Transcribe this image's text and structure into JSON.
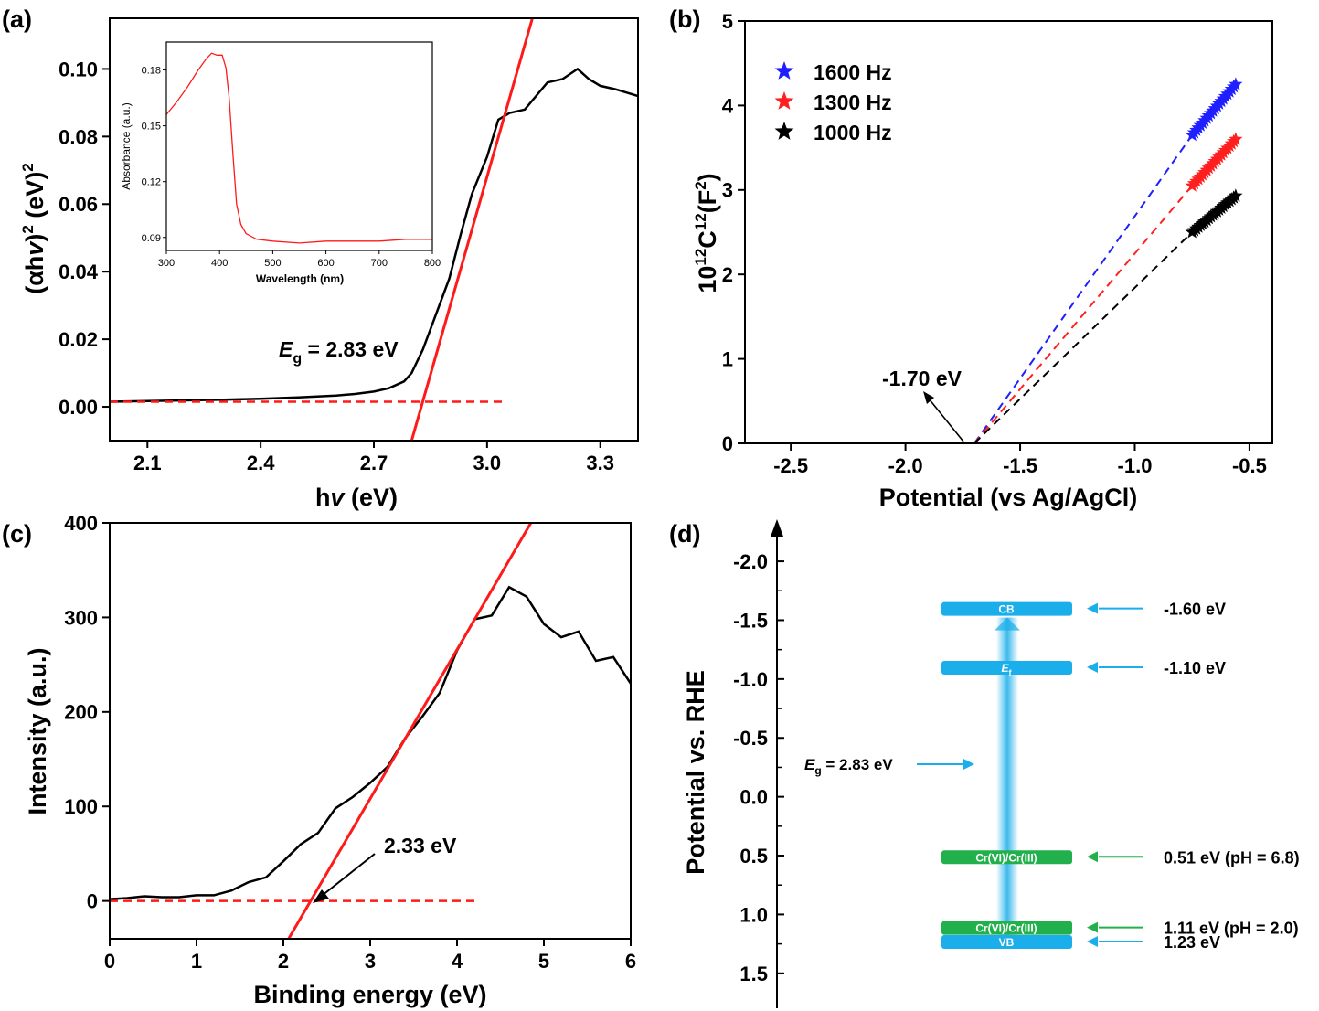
{
  "chart_data": [
    {
      "panel": "(a)",
      "type": "line",
      "xlabel_main": "h",
      "xlabel_italic": "v",
      "xlabel_tail": " (eV)",
      "ylabel_open": "(αh",
      "ylabel_italic": "v",
      "ylabel_close": ")",
      "ylabel_exp1": "2",
      "ylabel_unit": " (eV)",
      "ylabel_exp2": "2",
      "xlim": [
        2.0,
        3.4
      ],
      "ylim": [
        -0.01,
        0.115
      ],
      "xticks": [
        "2.1",
        "2.4",
        "2.7",
        "3.0",
        "3.3"
      ],
      "xtick_values": [
        2.1,
        2.4,
        2.7,
        3.0,
        3.3
      ],
      "yticks": [
        "0.00",
        "0.02",
        "0.04",
        "0.06",
        "0.08",
        "0.10"
      ],
      "ytick_values": [
        0,
        0.02,
        0.04,
        0.06,
        0.08,
        0.1
      ],
      "annotation_italic": "E",
      "annotation_sub": "g",
      "annotation_rest": " = 2.83 eV",
      "colors": {
        "data": "#000000",
        "fit": "#ff1a1a"
      },
      "series": [
        {
          "style": "solid-black",
          "x": [
            2.0,
            2.1,
            2.2,
            2.3,
            2.4,
            2.5,
            2.6,
            2.65,
            2.7,
            2.74,
            2.78,
            2.8,
            2.83,
            2.86,
            2.9,
            2.93,
            2.96,
            3.0,
            3.03,
            3.06,
            3.1,
            3.13,
            3.16,
            3.2,
            3.24,
            3.27,
            3.3,
            3.34,
            3.37,
            3.4
          ],
          "y": [
            0.0015,
            0.0017,
            0.0019,
            0.0021,
            0.0024,
            0.0028,
            0.0033,
            0.0038,
            0.0045,
            0.0055,
            0.0075,
            0.01,
            0.017,
            0.026,
            0.038,
            0.051,
            0.063,
            0.074,
            0.085,
            0.087,
            0.088,
            0.092,
            0.096,
            0.097,
            0.1,
            0.097,
            0.095,
            0.094,
            0.093,
            0.092
          ]
        },
        {
          "style": "solid-red",
          "x": [
            2.8,
            3.12
          ],
          "y": [
            -0.01,
            0.115
          ]
        },
        {
          "style": "dashed-red",
          "x": [
            2.0,
            3.04
          ],
          "y": [
            0.0015,
            0.0015
          ]
        }
      ],
      "inset": {
        "type": "line",
        "xlabel": "Wavelength (nm)",
        "ylabel": "Absorbance (a.u.)",
        "xlim": [
          300,
          800
        ],
        "ylim": [
          0.083,
          0.195
        ],
        "xticks": [
          "300",
          "400",
          "500",
          "600",
          "700",
          "800"
        ],
        "xtick_values": [
          300,
          400,
          500,
          600,
          700,
          800
        ],
        "yticks": [
          "0.09",
          "0.12",
          "0.15",
          "0.18"
        ],
        "ytick_values": [
          0.09,
          0.12,
          0.15,
          0.18
        ],
        "x": [
          300,
          320,
          340,
          360,
          375,
          385,
          395,
          405,
          412,
          418,
          425,
          432,
          440,
          450,
          470,
          500,
          550,
          600,
          650,
          700,
          750,
          800
        ],
        "y": [
          0.156,
          0.163,
          0.171,
          0.18,
          0.186,
          0.189,
          0.188,
          0.188,
          0.181,
          0.165,
          0.135,
          0.108,
          0.097,
          0.092,
          0.089,
          0.088,
          0.087,
          0.088,
          0.088,
          0.088,
          0.089,
          0.089
        ]
      }
    },
    {
      "panel": "(b)",
      "type": "scatter",
      "xlabel": "Potential (vs Ag/AgCl)",
      "ylabel_a": "10",
      "ylabel_sup1": "12",
      "ylabel_b": "C",
      "ylabel_sup2": "12",
      "ylabel_c": "(F",
      "ylabel_sup3": "2",
      "ylabel_d": ")",
      "xlim": [
        -2.7,
        -0.4
      ],
      "ylim": [
        0,
        5
      ],
      "xticks": [
        "-2.5",
        "-2.0",
        "-1.5",
        "-1.0",
        "-0.5"
      ],
      "xtick_values": [
        -2.5,
        -2.0,
        -1.5,
        -1.0,
        -0.5
      ],
      "yticks": [
        "0",
        "1",
        "2",
        "3",
        "4",
        "5"
      ],
      "ytick_values": [
        0,
        1,
        2,
        3,
        4,
        5
      ],
      "annotation": "-1.70 eV",
      "intercept": -1.7,
      "legend_position": "top-left",
      "series": [
        {
          "name": "1600 Hz",
          "color": "#1f1fff",
          "x_start": -0.75,
          "x_end": -0.56,
          "y_start": 3.65,
          "y_end": 4.25
        },
        {
          "name": "1300 Hz",
          "color": "#ff1f1f",
          "x_start": -0.75,
          "x_end": -0.56,
          "y_start": 3.05,
          "y_end": 3.6
        },
        {
          "name": "1000 Hz",
          "color": "#000000",
          "x_start": -0.75,
          "x_end": -0.56,
          "y_start": 2.5,
          "y_end": 2.93
        }
      ]
    },
    {
      "panel": "(c)",
      "type": "line",
      "xlabel": "Binding energy (eV)",
      "ylabel": "Intensity (a.u.)",
      "xlim": [
        0,
        6
      ],
      "ylim": [
        -40,
        400
      ],
      "xticks": [
        "0",
        "1",
        "2",
        "3",
        "4",
        "5",
        "6"
      ],
      "xtick_values": [
        0,
        1,
        2,
        3,
        4,
        5,
        6
      ],
      "yticks": [
        "0",
        "100",
        "200",
        "300",
        "400"
      ],
      "ytick_values": [
        0,
        100,
        200,
        300,
        400
      ],
      "annotation": "2.33 eV",
      "colors": {
        "data": "#000000",
        "fit": "#ff1a1a"
      },
      "series": [
        {
          "style": "solid-black",
          "x": [
            0,
            0.2,
            0.4,
            0.6,
            0.8,
            1.0,
            1.2,
            1.4,
            1.6,
            1.8,
            2.0,
            2.2,
            2.4,
            2.6,
            2.8,
            3.0,
            3.2,
            3.4,
            3.6,
            3.8,
            4.0,
            4.2,
            4.4,
            4.6,
            4.8,
            5.0,
            5.2,
            5.4,
            5.6,
            5.8,
            6.0
          ],
          "y": [
            2,
            3,
            5,
            4,
            4,
            6,
            6,
            11,
            20,
            25,
            42,
            60,
            72,
            98,
            110,
            125,
            142,
            172,
            195,
            220,
            265,
            298,
            302,
            332,
            322,
            293,
            279,
            285,
            254,
            258,
            230
          ]
        },
        {
          "style": "solid-red",
          "x": [
            2.06,
            4.85
          ],
          "y": [
            -40,
            400
          ]
        },
        {
          "style": "dashed-red",
          "x": [
            0,
            4.2
          ],
          "y": [
            0,
            0
          ]
        }
      ]
    },
    {
      "panel": "(d)",
      "type": "diagram",
      "ylabel": "Potential vs. RHE",
      "ylim": [
        1.75,
        -2.35
      ],
      "yticks": [
        "-2.0",
        "-1.5",
        "-1.0",
        "-0.5",
        "0.0",
        "0.5",
        "1.0",
        "1.5"
      ],
      "ytick_values": [
        -2.0,
        -1.5,
        -1.0,
        -0.5,
        0.0,
        0.5,
        1.0,
        1.5
      ],
      "colors": {
        "band": "#1aaeea",
        "redox": "#21b04b"
      },
      "levels": [
        {
          "label": "CB",
          "value": -1.6,
          "annotation": "-1.60 eV",
          "kind": "band"
        },
        {
          "label": "E",
          "label_sub": "f",
          "value": -1.1,
          "annotation": "-1.10 eV",
          "kind": "band"
        },
        {
          "label": "Cr(VI)/Cr(III)",
          "value": 0.51,
          "annotation": "0.51 eV (pH = 6.8)",
          "kind": "redox"
        },
        {
          "label": "Cr(VI)/Cr(III)",
          "value": 1.11,
          "annotation": "1.11 eV (pH = 2.0)",
          "kind": "redox"
        },
        {
          "label": "VB",
          "value": 1.23,
          "annotation": "1.23 eV",
          "kind": "band"
        }
      ],
      "gap_italic": "E",
      "gap_sub": "g",
      "gap_rest": " = 2.83 eV",
      "gap_value": 0.27
    }
  ],
  "panel_labels": [
    "(a)",
    "(b)",
    "(c)",
    "(d)"
  ]
}
